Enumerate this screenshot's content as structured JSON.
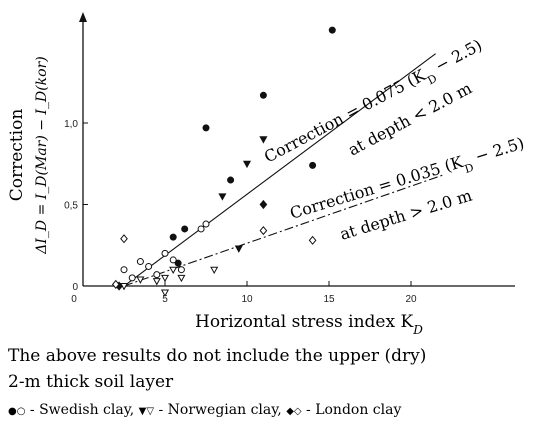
{
  "chart_data": {
    "type": "scatter",
    "xlabel": "Horizontal stress index K",
    "xlabel_sub": "D",
    "ylabel_main": "Correction",
    "ylabel_sub": "ΔI_D = I_D(Mar) − I_D(kor)",
    "xlim": [
      0,
      25
    ],
    "ylim": [
      0,
      1.7
    ],
    "x_ticks": [
      {
        "v": 0,
        "label": "0"
      },
      {
        "v": 5,
        "label": "5"
      },
      {
        "v": 10,
        "label": "10"
      },
      {
        "v": 15,
        "label": "15"
      },
      {
        "v": 20,
        "label": "20"
      }
    ],
    "y_ticks": [
      {
        "v": 0,
        "label": "0"
      },
      {
        "v": 0.5,
        "label": "0,5"
      },
      {
        "v": 1.0,
        "label": "1,0"
      }
    ],
    "lines": [
      {
        "label_main": "Correction = 0.075 (K",
        "label_sub": "D",
        "label_end": " − 2.5)",
        "depth_label": "at depth < 2.0 m",
        "slope": 0.075,
        "x0": 2.5,
        "x_end": 21.5,
        "style": "solid"
      },
      {
        "label_main": "Correction = 0.035 (K",
        "label_sub": "D",
        "label_end": " − 2.5)",
        "depth_label": "at depth > 2.0 m",
        "slope": 0.035,
        "x0": 2.5,
        "x_end": 22.0,
        "style": "dashdot"
      }
    ],
    "series": [
      {
        "name": "Swedish clay",
        "marker": "circle",
        "filled": [
          [
            5.5,
            0.3
          ],
          [
            5.8,
            0.14
          ],
          [
            6.2,
            0.35
          ],
          [
            7.5,
            0.97
          ],
          [
            11.0,
            1.17
          ],
          [
            14.0,
            0.74
          ],
          [
            15.2,
            1.57
          ],
          [
            9.0,
            0.65
          ]
        ],
        "open": [
          [
            2.5,
            0.1
          ],
          [
            3.0,
            0.05
          ],
          [
            3.5,
            0.15
          ],
          [
            4.0,
            0.12
          ],
          [
            5.0,
            0.2
          ],
          [
            5.5,
            0.16
          ],
          [
            6.0,
            0.1
          ],
          [
            7.2,
            0.35
          ],
          [
            7.5,
            0.38
          ],
          [
            4.5,
            0.07
          ]
        ]
      },
      {
        "name": "Norwegian clay",
        "marker": "triangle",
        "filled": [
          [
            8.5,
            0.55
          ],
          [
            10.0,
            0.75
          ],
          [
            11.0,
            0.9
          ],
          [
            9.5,
            0.23
          ]
        ],
        "open": [
          [
            2.5,
            0.0
          ],
          [
            3.5,
            0.04
          ],
          [
            4.5,
            0.03
          ],
          [
            5.0,
            0.05
          ],
          [
            5.5,
            0.1
          ],
          [
            6.0,
            0.05
          ],
          [
            8.0,
            0.1
          ],
          [
            5.0,
            -0.04
          ]
        ]
      },
      {
        "name": "London clay",
        "marker": "diamond",
        "filled": [
          [
            11.0,
            0.5
          ],
          [
            2.2,
            0.0
          ]
        ],
        "open": [
          [
            2.5,
            0.29
          ],
          [
            11.0,
            0.34
          ],
          [
            14.0,
            0.28
          ],
          [
            2.0,
            0.01
          ]
        ]
      }
    ],
    "notes": [
      "The above results do not include the upper (dry)",
      "2-m thick soil layer"
    ],
    "legend": [
      {
        "symbols": "●○",
        "text": " - Swedish clay, "
      },
      {
        "symbols": "▼▽",
        "text": " - Norwegian clay, "
      },
      {
        "symbols": "◆◇",
        "text": " - London clay"
      }
    ]
  }
}
